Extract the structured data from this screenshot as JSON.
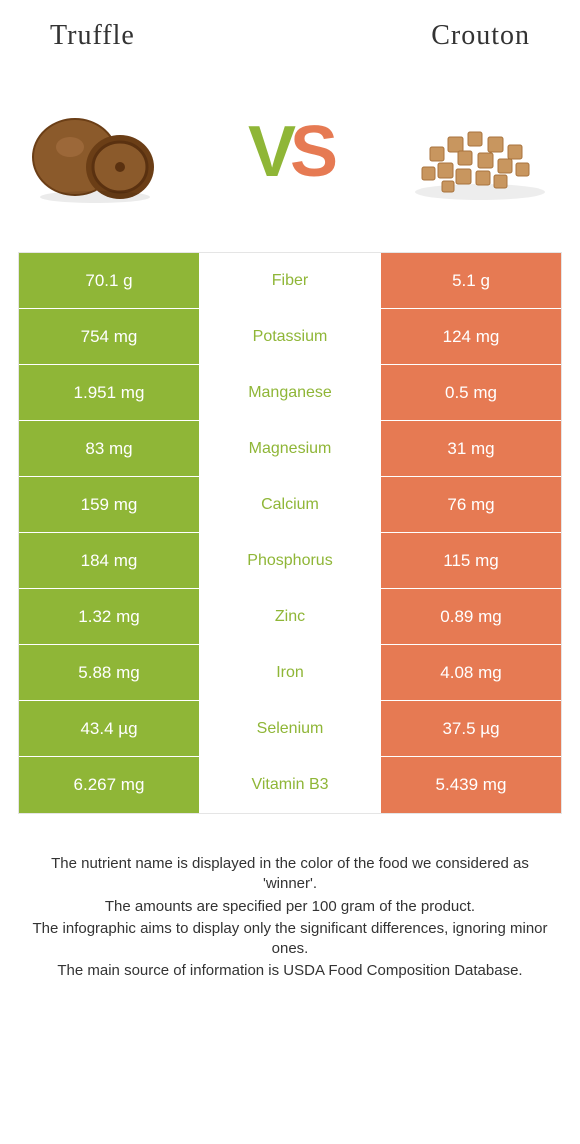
{
  "colors": {
    "left_bg": "#8fb637",
    "right_bg": "#e67a53",
    "left_nutrient": "#8fb637",
    "right_nutrient": "#e67a53",
    "vs_v": "#8fb637",
    "vs_s": "#e67a53",
    "row_border": "#ffffff",
    "table_border": "#e5e5e5",
    "text": "#333333"
  },
  "left_title": "Truffle",
  "right_title": "Crouton",
  "vs": {
    "v": "V",
    "s": "S"
  },
  "rows": [
    {
      "left": "70.1 g",
      "name": "Fiber",
      "right": "5.1 g",
      "winner": "left"
    },
    {
      "left": "754 mg",
      "name": "Potassium",
      "right": "124 mg",
      "winner": "left"
    },
    {
      "left": "1.951 mg",
      "name": "Manganese",
      "right": "0.5 mg",
      "winner": "left"
    },
    {
      "left": "83 mg",
      "name": "Magnesium",
      "right": "31 mg",
      "winner": "left"
    },
    {
      "left": "159 mg",
      "name": "Calcium",
      "right": "76 mg",
      "winner": "left"
    },
    {
      "left": "184 mg",
      "name": "Phosphorus",
      "right": "115 mg",
      "winner": "left"
    },
    {
      "left": "1.32 mg",
      "name": "Zinc",
      "right": "0.89 mg",
      "winner": "left"
    },
    {
      "left": "5.88 mg",
      "name": "Iron",
      "right": "4.08 mg",
      "winner": "left"
    },
    {
      "left": "43.4 µg",
      "name": "Selenium",
      "right": "37.5 µg",
      "winner": "left"
    },
    {
      "left": "6.267 mg",
      "name": "Vitamin B3",
      "right": "5.439 mg",
      "winner": "left"
    }
  ],
  "footer": {
    "line1": "The nutrient name is displayed in the color of the food we considered as 'winner'.",
    "line2": "The amounts are specified per 100 gram of the product.",
    "line3": "The infographic aims to display only the significant differences, ignoring minor ones.",
    "line4": "The main source of information is USDA Food Composition Database."
  }
}
